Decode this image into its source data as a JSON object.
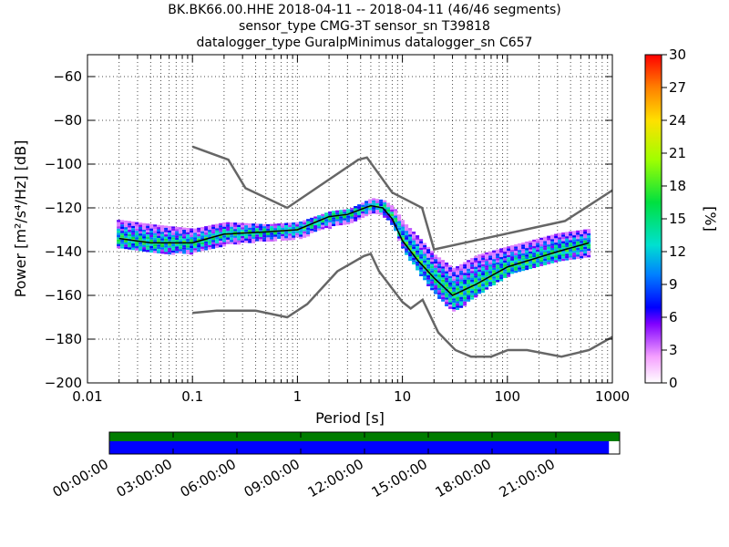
{
  "chart_data": {
    "type": "heatmap",
    "title": "BK.BK66.00.HHE   2018-04-11 -- 2018-04-11  (46/46 segments)",
    "subtitle_1": "sensor_type CMG-3T sensor_sn T39818",
    "subtitle_2": "datalogger_type GuralpMinimus datalogger_sn C657",
    "xlabel": "Period [s]",
    "ylabel": "Power [m²/s⁴/Hz] [dB]",
    "xscale": "log",
    "xlim": [
      0.01,
      1000
    ],
    "ylim": [
      -200,
      -50
    ],
    "x_ticks": [
      "0.01",
      "0.1",
      "1",
      "10",
      "100",
      "1000"
    ],
    "y_ticks": [
      "−200",
      "−180",
      "−160",
      "−140",
      "−120",
      "−100",
      "−80",
      "−60"
    ],
    "grid": true,
    "colorbar": {
      "label": "[%]",
      "range": [
        0,
        30
      ],
      "ticks": [
        "0",
        "3",
        "6",
        "9",
        "12",
        "15",
        "18",
        "21",
        "24",
        "27",
        "30"
      ]
    },
    "noise_model_high": [
      [
        0.1,
        -92
      ],
      [
        0.22,
        -98
      ],
      [
        0.32,
        -111
      ],
      [
        0.8,
        -120
      ],
      [
        3.8,
        -98
      ],
      [
        4.6,
        -97
      ],
      [
        8,
        -113
      ],
      [
        15.4,
        -120
      ],
      [
        20,
        -139
      ],
      [
        354,
        -126
      ],
      [
        1000,
        -112
      ]
    ],
    "noise_model_low": [
      [
        0.1,
        -168
      ],
      [
        0.17,
        -167
      ],
      [
        0.4,
        -167
      ],
      [
        0.8,
        -170
      ],
      [
        1.24,
        -164
      ],
      [
        2.4,
        -149
      ],
      [
        4.3,
        -142
      ],
      [
        5,
        -141
      ],
      [
        6,
        -149
      ],
      [
        10,
        -163
      ],
      [
        12,
        -166
      ],
      [
        15.6,
        -162
      ],
      [
        22,
        -177
      ],
      [
        32,
        -185
      ],
      [
        45,
        -188
      ],
      [
        70,
        -188
      ],
      [
        101,
        -185
      ],
      [
        154,
        -185
      ],
      [
        328,
        -188
      ],
      [
        600,
        -185
      ],
      [
        1000,
        -179
      ]
    ],
    "mode_curve": [
      [
        0.02,
        -134
      ],
      [
        0.04,
        -136
      ],
      [
        0.1,
        -136
      ],
      [
        0.2,
        -132
      ],
      [
        0.5,
        -131
      ],
      [
        1,
        -130
      ],
      [
        2,
        -124
      ],
      [
        3,
        -123
      ],
      [
        5,
        -119
      ],
      [
        6.5,
        -120
      ],
      [
        8,
        -125
      ],
      [
        10,
        -135
      ],
      [
        14,
        -144
      ],
      [
        20,
        -152
      ],
      [
        30,
        -160
      ],
      [
        50,
        -155
      ],
      [
        100,
        -147
      ],
      [
        300,
        -140
      ],
      [
        600,
        -136
      ]
    ],
    "density_upper": [
      [
        0.02,
        -126
      ],
      [
        0.04,
        -128
      ],
      [
        0.1,
        -130
      ],
      [
        0.2,
        -127
      ],
      [
        0.5,
        -128
      ],
      [
        1,
        -127
      ],
      [
        2,
        -122
      ],
      [
        3,
        -121
      ],
      [
        5,
        -116
      ],
      [
        6.5,
        -117
      ],
      [
        8,
        -120
      ],
      [
        10,
        -127
      ],
      [
        14,
        -134
      ],
      [
        20,
        -142
      ],
      [
        30,
        -148
      ],
      [
        50,
        -142
      ],
      [
        100,
        -138
      ],
      [
        300,
        -132
      ],
      [
        600,
        -130
      ]
    ],
    "density_lower": [
      [
        0.02,
        -138
      ],
      [
        0.04,
        -141
      ],
      [
        0.1,
        -141
      ],
      [
        0.2,
        -137
      ],
      [
        0.5,
        -135
      ],
      [
        1,
        -134
      ],
      [
        2,
        -129
      ],
      [
        3,
        -127
      ],
      [
        5,
        -122
      ],
      [
        6.5,
        -124
      ],
      [
        8,
        -129
      ],
      [
        10,
        -140
      ],
      [
        14,
        -150
      ],
      [
        20,
        -160
      ],
      [
        30,
        -168
      ],
      [
        50,
        -160
      ],
      [
        100,
        -151
      ],
      [
        300,
        -144
      ],
      [
        600,
        -142
      ]
    ]
  },
  "time_axis": {
    "tick_labels": [
      "00:00:00",
      "03:00:00",
      "06:00:00",
      "09:00:00",
      "12:00:00",
      "15:00:00",
      "18:00:00",
      "21:00:00"
    ],
    "coverage_fraction": 0.979,
    "colors": {
      "data_available": "#007c00",
      "psd_used": "#0000ff"
    }
  }
}
